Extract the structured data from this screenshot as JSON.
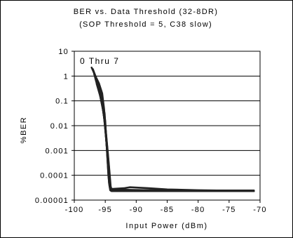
{
  "chart_data": {
    "type": "line",
    "title": [
      "BER vs. Data Threshold (32-8DR)",
      "(SOP Threshold = 5, C38 slow)"
    ],
    "xlabel": "Input Power (dBm)",
    "ylabel": "%BER",
    "xlim": [
      -100,
      -70
    ],
    "ylim": [
      1e-05,
      10
    ],
    "yscale": "log",
    "x_ticks": [
      -100,
      -95,
      -90,
      -85,
      -80,
      -75,
      -70
    ],
    "x_tick_labels": [
      "-100",
      "-95",
      "-90",
      "-85",
      "-80",
      "-75",
      "-70"
    ],
    "y_ticks": [
      10,
      1,
      0.1,
      0.01,
      0.001,
      0.0001,
      1e-05
    ],
    "y_tick_labels": [
      "10",
      "1",
      "0.1",
      "0.01",
      "0.001",
      "0.0001",
      "0.00001"
    ],
    "grid": "horizontal",
    "legend_placement": "top-left",
    "annotation": "0 Thru 7",
    "line_color": "#222222",
    "series": [
      {
        "x": [
          -97.2,
          -96.5,
          -96.0,
          -95.5,
          -95.2,
          -95.0,
          -94.8,
          -94.6,
          -94.4,
          -94.2,
          -94.0,
          -92.0,
          -90.0,
          -85.0,
          -80.0,
          -75.0,
          -71.0
        ],
        "y": [
          2.2,
          0.9,
          0.5,
          0.2,
          0.05,
          0.01,
          0.002,
          0.0003,
          5e-05,
          2.5e-05,
          2.3e-05,
          2.3e-05,
          2.3e-05,
          2.3e-05,
          2.3e-05,
          2.3e-05,
          2.3e-05
        ]
      },
      {
        "x": [
          -97.0,
          -96.4,
          -95.9,
          -95.5,
          -95.1,
          -94.9,
          -94.7,
          -94.5,
          -94.3,
          -94.1,
          -93.0,
          -90.0,
          -85.0,
          -80.0,
          -75.0,
          -71.0
        ],
        "y": [
          1.9,
          0.75,
          0.35,
          0.12,
          0.03,
          0.005,
          0.0008,
          0.0001,
          3.5e-05,
          2.6e-05,
          2.5e-05,
          2.4e-05,
          2.4e-05,
          2.4e-05,
          2.4e-05,
          2.4e-05
        ]
      },
      {
        "x": [
          -96.9,
          -96.3,
          -95.8,
          -95.4,
          -95.0,
          -94.8,
          -94.6,
          -94.4,
          -94.2,
          -94.0,
          -92.0,
          -88.0,
          -84.0,
          -80.0,
          -75.0,
          -71.0
        ],
        "y": [
          1.5,
          0.6,
          0.25,
          0.08,
          0.015,
          0.002,
          0.0004,
          8e-05,
          3e-05,
          2.7e-05,
          2.6e-05,
          2.5e-05,
          2.5e-05,
          2.4e-05,
          2.4e-05,
          2.4e-05
        ]
      },
      {
        "x": [
          -96.8,
          -96.2,
          -95.7,
          -95.3,
          -95.0,
          -94.7,
          -94.5,
          -94.3,
          -94.0,
          -92.0,
          -91.0,
          -88.0,
          -85.0,
          -80.0,
          -75.0,
          -71.0
        ],
        "y": [
          1.2,
          0.45,
          0.15,
          0.04,
          0.007,
          0.001,
          0.00015,
          4e-05,
          2.8e-05,
          3e-05,
          3.3e-05,
          3e-05,
          2.7e-05,
          2.5e-05,
          2.4e-05,
          2.4e-05
        ]
      },
      {
        "x": [
          -96.7,
          -96.1,
          -95.6,
          -95.2,
          -94.9,
          -94.6,
          -94.4,
          -94.2,
          -94.0,
          -93.0,
          -90.0,
          -85.0,
          -80.0,
          -75.0,
          -71.0
        ],
        "y": [
          1.0,
          0.35,
          0.1,
          0.025,
          0.004,
          0.0006,
          0.0001,
          3.5e-05,
          2.6e-05,
          2.5e-05,
          2.4e-05,
          2.4e-05,
          2.4e-05,
          2.4e-05,
          2.4e-05
        ]
      },
      {
        "x": [
          -96.6,
          -96.0,
          -95.5,
          -95.1,
          -94.8,
          -94.5,
          -94.3,
          -94.1,
          -93.5,
          -90.0,
          -85.0,
          -80.0,
          -75.0,
          -71.0
        ],
        "y": [
          0.8,
          0.25,
          0.07,
          0.015,
          0.002,
          0.0003,
          6e-05,
          3e-05,
          2.5e-05,
          2.4e-05,
          2.3e-05,
          2.3e-05,
          2.3e-05,
          2.3e-05
        ]
      },
      {
        "x": [
          -96.5,
          -95.9,
          -95.4,
          -95.0,
          -94.7,
          -94.4,
          -94.2,
          -94.0,
          -93.0,
          -90.0,
          -85.0,
          -80.0,
          -75.0,
          -71.0
        ],
        "y": [
          0.65,
          0.2,
          0.05,
          0.01,
          0.0015,
          0.0002,
          4e-05,
          2.8e-05,
          2.6e-05,
          2.5e-05,
          2.4e-05,
          2.4e-05,
          2.4e-05,
          2.4e-05
        ]
      },
      {
        "x": [
          -96.4,
          -95.8,
          -95.3,
          -94.9,
          -94.6,
          -94.3,
          -94.1,
          -93.9,
          -93.0,
          -90.0,
          -85.0,
          -80.0,
          -75.0,
          -71.0
        ],
        "y": [
          0.5,
          0.15,
          0.035,
          0.006,
          0.0009,
          0.00012,
          3e-05,
          2.6e-05,
          2.5e-05,
          2.4e-05,
          2.4e-05,
          2.4e-05,
          2.4e-05,
          2.4e-05
        ]
      }
    ]
  }
}
